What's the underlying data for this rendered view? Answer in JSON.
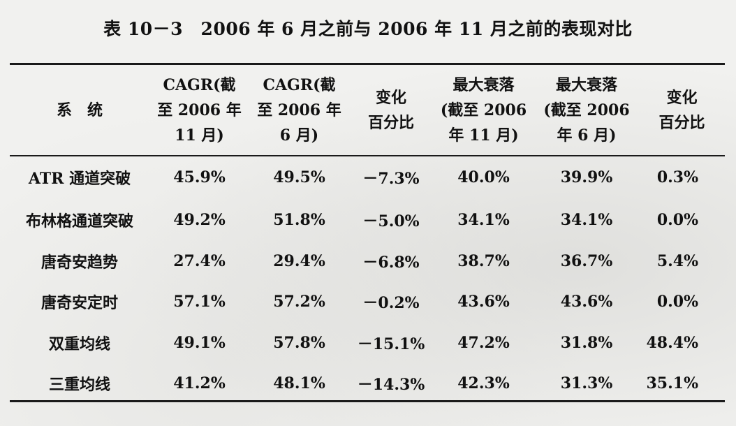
{
  "caption": "表 10－3　2006 年 6 月之前与 2006 年 11 月之前的表现对比",
  "table": {
    "headers": [
      {
        "lines": [
          "系　统"
        ]
      },
      {
        "lines": [
          "CAGR(截",
          "至 2006 年",
          "11 月)"
        ]
      },
      {
        "lines": [
          "CAGR(截",
          "至 2006 年",
          "6 月)"
        ]
      },
      {
        "lines": [
          "变化",
          "百分比"
        ]
      },
      {
        "lines": [
          "最大衰落",
          "(截至 2006",
          "年 11 月)"
        ]
      },
      {
        "lines": [
          "最大衰落",
          "(截至 2006",
          "年 6 月)"
        ]
      },
      {
        "lines": [
          "变化",
          "百分比"
        ]
      }
    ],
    "rows": [
      [
        "ATR 通道突破",
        "45.9%",
        "49.5%",
        "－7.3%",
        "40.0%",
        "39.9%",
        "0.3%"
      ],
      [
        "布林格通道突破",
        "49.2%",
        "51.8%",
        "－5.0%",
        "34.1%",
        "34.1%",
        "0.0%"
      ],
      [
        "唐奇安趋势",
        "27.4%",
        "29.4%",
        "－6.8%",
        "38.7%",
        "36.7%",
        "5.4%"
      ],
      [
        "唐奇安定时",
        "57.1%",
        "57.2%",
        "－0.2%",
        "43.6%",
        "43.6%",
        "0.0%"
      ],
      [
        "双重均线",
        "49.1%",
        "57.8%",
        "－15.1%",
        "47.2%",
        "31.8%",
        "48.4%"
      ],
      [
        "三重均线",
        "41.2%",
        "48.1%",
        "－14.3%",
        "42.3%",
        "31.3%",
        "35.1%"
      ]
    ]
  }
}
